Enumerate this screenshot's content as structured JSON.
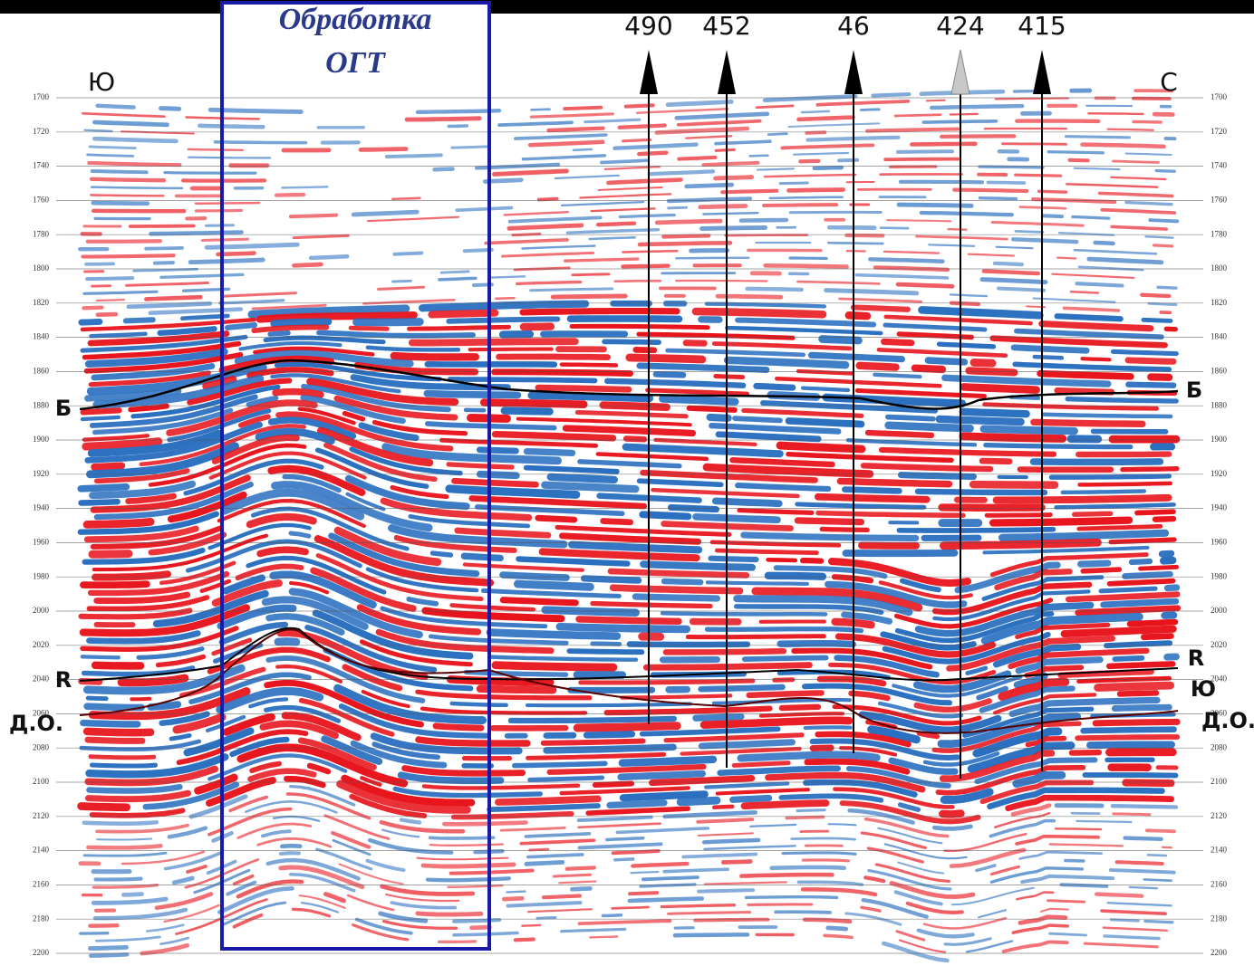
{
  "title_box": {
    "lines": [
      "Обработка",
      "ОГТ"
    ]
  },
  "directions": {
    "left": "Ю",
    "right": "С"
  },
  "wells": [
    {
      "label": "490"
    },
    {
      "label": "452"
    },
    {
      "label": "46"
    },
    {
      "label": "424"
    },
    {
      "label": "415"
    }
  ],
  "horizons": {
    "b_left": "Б",
    "b_right": "Б",
    "r_left": "R",
    "r_right": "R",
    "do_left": "Д.О.",
    "do_right": "Д.О.",
    "extra_right": "Ю"
  },
  "time_axis": {
    "ticks": [
      1700,
      1720,
      1740,
      1760,
      1780,
      1800,
      1820,
      1840,
      1860,
      1880,
      1900,
      1920,
      1940,
      1960,
      1980,
      2000,
      2020,
      2040,
      2060,
      2080,
      2100,
      2120,
      2140,
      2160,
      2180,
      2200
    ]
  }
}
